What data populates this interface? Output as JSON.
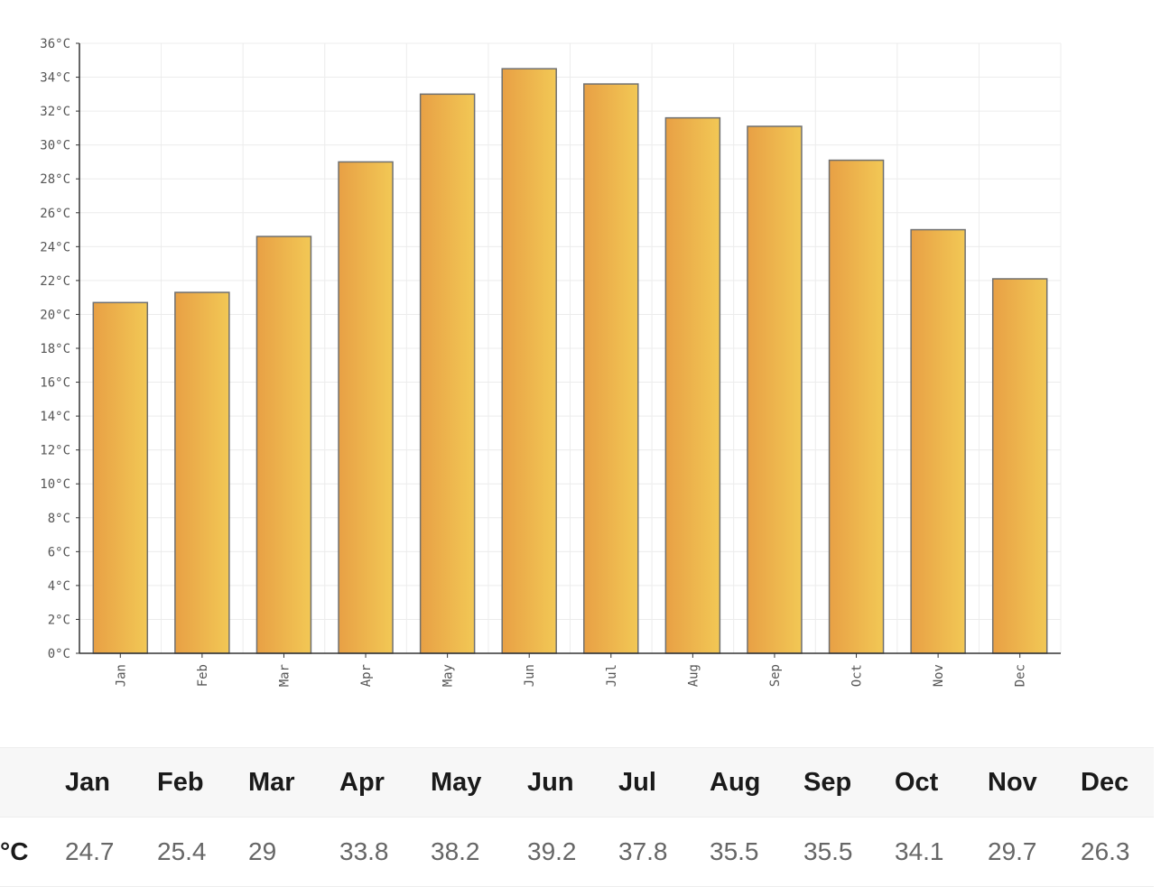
{
  "chart_data": {
    "type": "bar",
    "categories": [
      "Jan",
      "Feb",
      "Mar",
      "Apr",
      "May",
      "Jun",
      "Jul",
      "Aug",
      "Sep",
      "Oct",
      "Nov",
      "Dec"
    ],
    "values": [
      20.7,
      21.3,
      24.6,
      29.0,
      33.0,
      34.5,
      33.6,
      31.6,
      31.1,
      29.1,
      25.0,
      22.1
    ],
    "ylim": [
      0,
      36
    ],
    "yticks": [
      "0°C",
      "2°C",
      "4°C",
      "6°C",
      "8°C",
      "10°C",
      "12°C",
      "14°C",
      "16°C",
      "18°C",
      "20°C",
      "22°C",
      "24°C",
      "26°C",
      "28°C",
      "30°C",
      "32°C",
      "34°C",
      "36°C"
    ],
    "ytick_values": [
      0,
      2,
      4,
      6,
      8,
      10,
      12,
      14,
      16,
      18,
      20,
      22,
      24,
      26,
      28,
      30,
      32,
      34,
      36
    ],
    "grid": true,
    "bar_color_start": "#e8a045",
    "bar_color_end": "#f2c855",
    "bar_edge_color": "#707070"
  },
  "table": {
    "headers": [
      "Jan",
      "Feb",
      "Mar",
      "Apr",
      "May",
      "Jun",
      "Jul",
      "Aug",
      "Sep",
      "Oct",
      "Nov",
      "Dec"
    ],
    "unit_label": "°C",
    "values": [
      "24.7",
      "25.4",
      "29",
      "33.8",
      "38.2",
      "39.2",
      "37.8",
      "35.5",
      "35.5",
      "34.1",
      "29.7",
      "26.3"
    ]
  }
}
